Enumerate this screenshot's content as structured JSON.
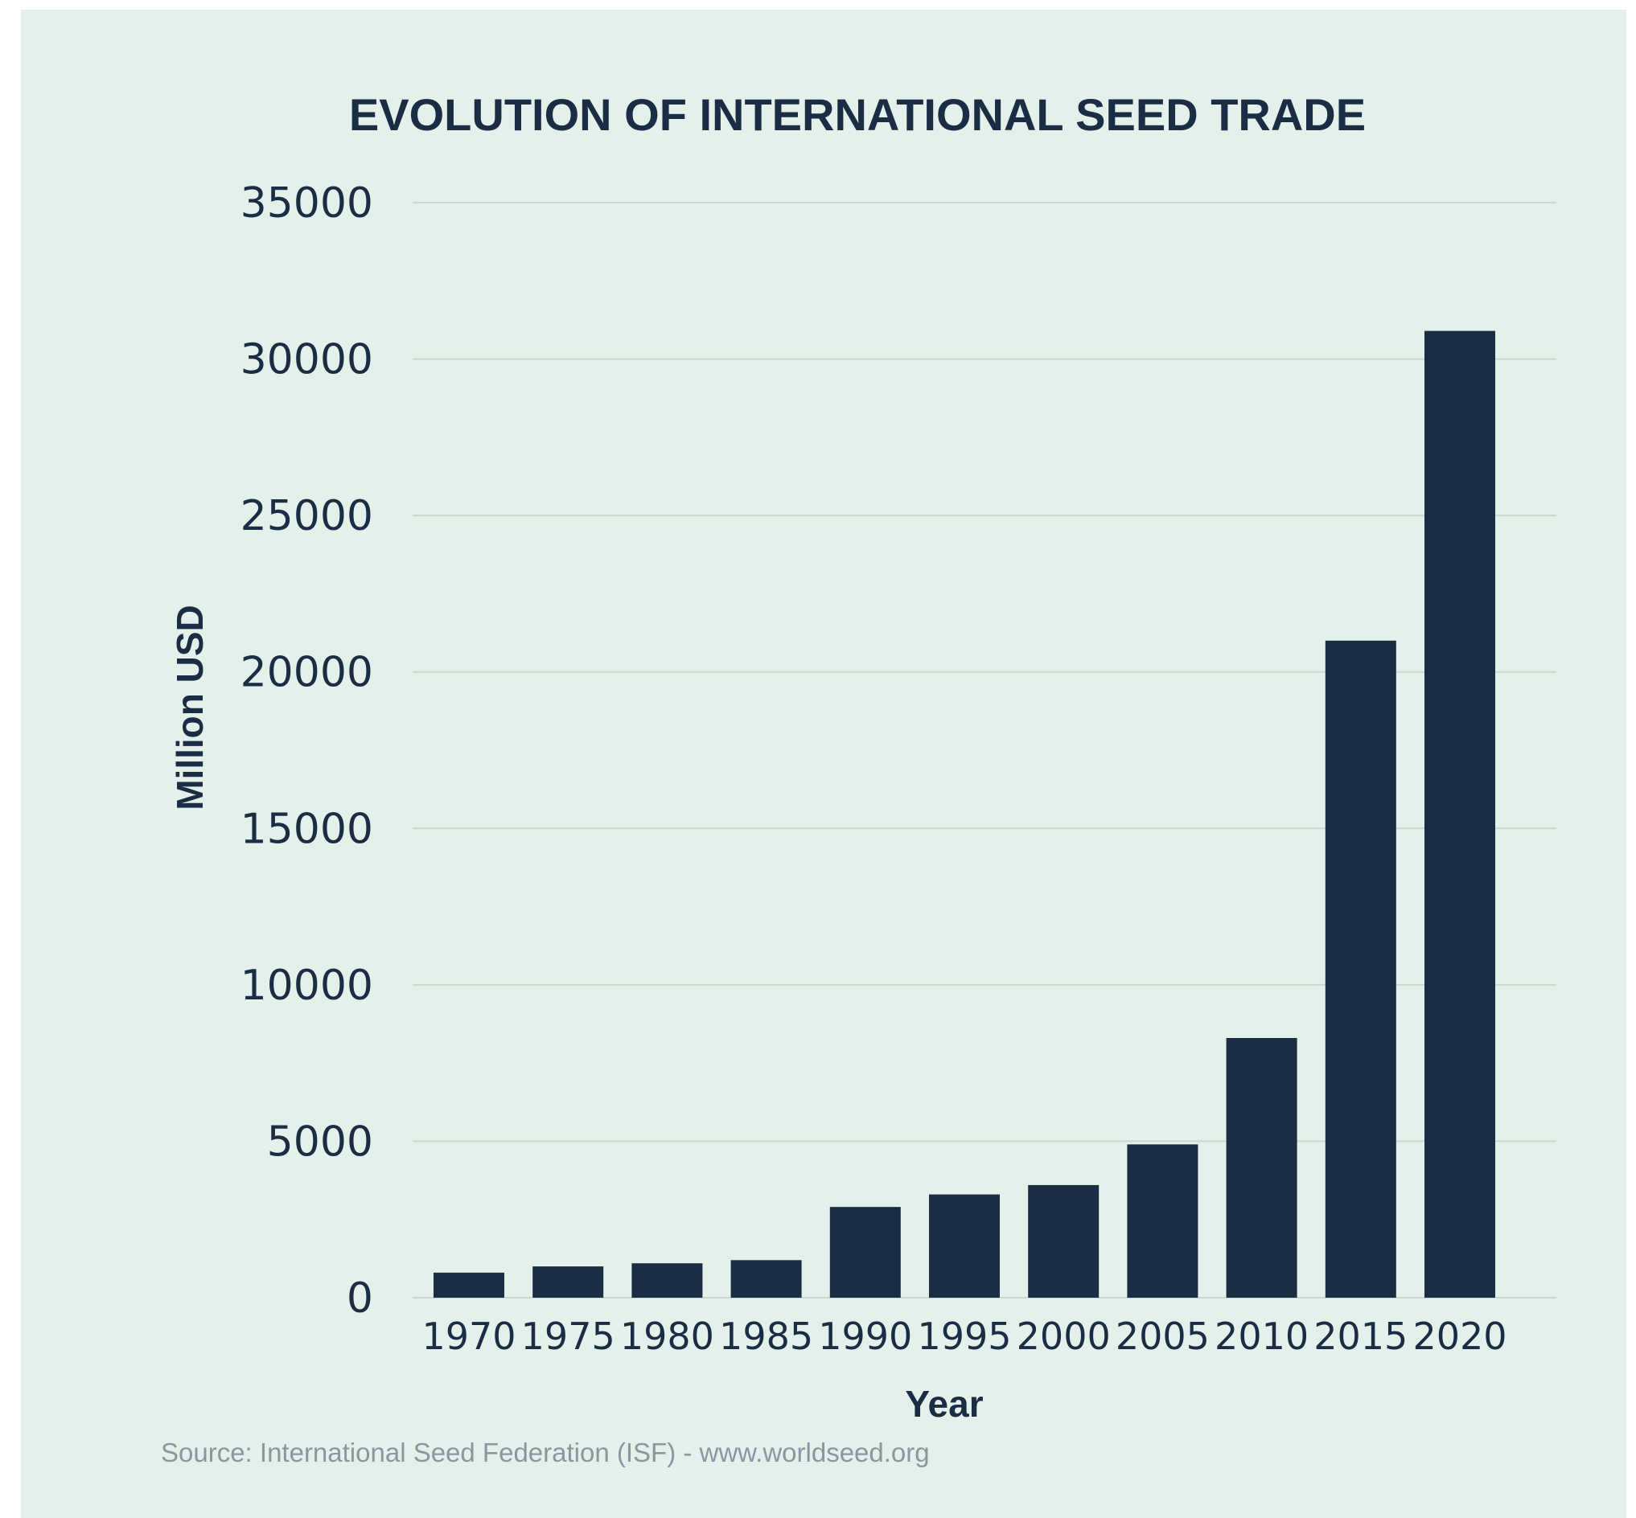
{
  "chart_data": {
    "type": "bar",
    "title": "EVOLUTION OF INTERNATIONAL SEED TRADE",
    "xlabel": "Year",
    "ylabel": "Million USD",
    "categories": [
      "1970",
      "1975",
      "1980",
      "1985",
      "1990",
      "1995",
      "2000",
      "2005",
      "2010",
      "2015",
      "2020"
    ],
    "values": [
      800,
      1000,
      1100,
      1200,
      2900,
      3300,
      3600,
      4900,
      8300,
      21000,
      30900
    ],
    "yticks": [
      "0",
      "5000",
      "10000",
      "15000",
      "20000",
      "25000",
      "30000",
      "35000"
    ],
    "ylim": [
      0,
      35000
    ],
    "grid": true,
    "source": "Source: International Seed Federation (ISF) - www.worldseed.org",
    "colors": {
      "background": "#e4f1ea",
      "bar": "#1b2d45",
      "text": "#1b2d45",
      "grid": "#c9d8d0",
      "source": "#8a96a0"
    }
  }
}
